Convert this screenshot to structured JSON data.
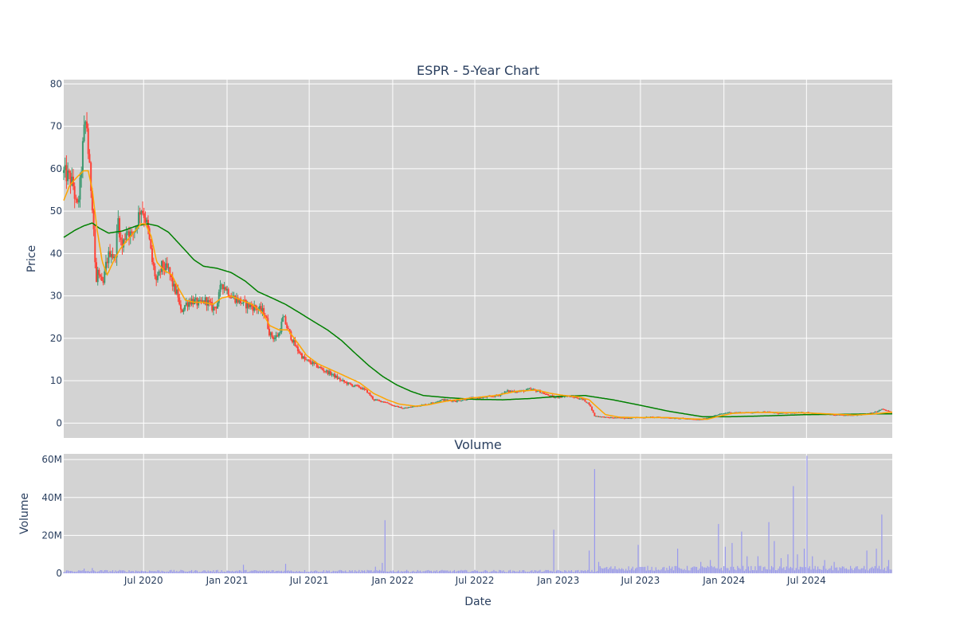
{
  "chart_data": [
    {
      "type": "candlestick",
      "title": "ESPR - 5-Year Chart",
      "ylabel": "Price",
      "ylim": [
        -3.5,
        81
      ],
      "yticks": [
        0,
        10,
        20,
        30,
        40,
        50,
        60,
        70,
        80
      ],
      "x_range": [
        "2020-01-07",
        "2025-01-06"
      ],
      "grid": true,
      "background": "#d3d3d3",
      "colors": {
        "increasing": "#3d9970",
        "decreasing": "#ff4136",
        "ma_short": "#ffa500",
        "ma_long": "#008000"
      },
      "price_anchors": [
        [
          "2020-01-07",
          59
        ],
        [
          "2020-01-18",
          58
        ],
        [
          "2020-01-28",
          56
        ],
        [
          "2020-02-05",
          50
        ],
        [
          "2020-02-12",
          56
        ],
        [
          "2020-02-20",
          68
        ],
        [
          "2020-02-26",
          72
        ],
        [
          "2020-03-02",
          62
        ],
        [
          "2020-03-06",
          57
        ],
        [
          "2020-03-10",
          52
        ],
        [
          "2020-03-14",
          44
        ],
        [
          "2020-03-18",
          32
        ],
        [
          "2020-03-22",
          36
        ],
        [
          "2020-03-26",
          34
        ],
        [
          "2020-04-02",
          32
        ],
        [
          "2020-04-10",
          38
        ],
        [
          "2020-04-20",
          41
        ],
        [
          "2020-04-28",
          38
        ],
        [
          "2020-05-06",
          48
        ],
        [
          "2020-05-14",
          41
        ],
        [
          "2020-05-25",
          46
        ],
        [
          "2020-06-05",
          44
        ],
        [
          "2020-06-15",
          47
        ],
        [
          "2020-06-25",
          51
        ],
        [
          "2020-07-03",
          49
        ],
        [
          "2020-07-10",
          46
        ],
        [
          "2020-07-20",
          38
        ],
        [
          "2020-07-30",
          33
        ],
        [
          "2020-08-10",
          37
        ],
        [
          "2020-08-25",
          36
        ],
        [
          "2020-09-05",
          32
        ],
        [
          "2020-09-15",
          30
        ],
        [
          "2020-09-20",
          26
        ],
        [
          "2020-10-01",
          28
        ],
        [
          "2020-10-15",
          29
        ],
        [
          "2020-11-01",
          28
        ],
        [
          "2020-11-15",
          29
        ],
        [
          "2020-12-01",
          27
        ],
        [
          "2020-12-10",
          28
        ],
        [
          "2020-12-20",
          33
        ],
        [
          "2020-12-28",
          32
        ],
        [
          "2021-01-10",
          30
        ],
        [
          "2021-01-25",
          29
        ],
        [
          "2021-02-10",
          28
        ],
        [
          "2021-02-25",
          27.5
        ],
        [
          "2021-03-10",
          27
        ],
        [
          "2021-03-25",
          26
        ],
        [
          "2021-04-05",
          21
        ],
        [
          "2021-04-15",
          20
        ],
        [
          "2021-04-25",
          21
        ],
        [
          "2021-05-05",
          25
        ],
        [
          "2021-05-15",
          22
        ],
        [
          "2021-06-01",
          18
        ],
        [
          "2021-06-20",
          15
        ],
        [
          "2021-07-10",
          14
        ],
        [
          "2021-08-01",
          12.5
        ],
        [
          "2021-08-20",
          11.5
        ],
        [
          "2021-09-10",
          10
        ],
        [
          "2021-10-01",
          9
        ],
        [
          "2021-10-20",
          8.5
        ],
        [
          "2021-11-05",
          7.5
        ],
        [
          "2021-11-20",
          5.5
        ],
        [
          "2021-12-15",
          5
        ],
        [
          "2022-01-05",
          4
        ],
        [
          "2022-01-25",
          3.5
        ],
        [
          "2022-02-20",
          4
        ],
        [
          "2022-03-20",
          4.5
        ],
        [
          "2022-04-20",
          5.5
        ],
        [
          "2022-05-20",
          5.2
        ],
        [
          "2022-06-20",
          5.8
        ],
        [
          "2022-07-20",
          6
        ],
        [
          "2022-08-20",
          6.5
        ],
        [
          "2022-09-10",
          7.5
        ],
        [
          "2022-10-10",
          7.5
        ],
        [
          "2022-11-01",
          8
        ],
        [
          "2022-11-20",
          7.5
        ],
        [
          "2022-12-10",
          6.5
        ],
        [
          "2022-12-25",
          6
        ],
        [
          "2023-01-15",
          6.5
        ],
        [
          "2023-02-10",
          6
        ],
        [
          "2023-02-25",
          5.5
        ],
        [
          "2023-03-10",
          4.5
        ],
        [
          "2023-03-22",
          1.7
        ],
        [
          "2023-04-20",
          1.3
        ],
        [
          "2023-05-20",
          1.2
        ],
        [
          "2023-06-20",
          1.3
        ],
        [
          "2023-07-20",
          1.4
        ],
        [
          "2023-08-20",
          1.3
        ],
        [
          "2023-09-20",
          1.2
        ],
        [
          "2023-10-20",
          0.9
        ],
        [
          "2023-11-10",
          0.8
        ],
        [
          "2023-12-01",
          1.4
        ],
        [
          "2023-12-20",
          2
        ],
        [
          "2024-01-10",
          2.5
        ],
        [
          "2024-02-01",
          2.5
        ],
        [
          "2024-03-01",
          2.5
        ],
        [
          "2024-04-01",
          2.7
        ],
        [
          "2024-05-01",
          2.3
        ],
        [
          "2024-06-01",
          2.4
        ],
        [
          "2024-07-01",
          2.5
        ],
        [
          "2024-08-01",
          2.2
        ],
        [
          "2024-09-01",
          1.9
        ],
        [
          "2024-10-01",
          1.8
        ],
        [
          "2024-11-01",
          2.1
        ],
        [
          "2024-12-01",
          2.6
        ],
        [
          "2024-12-15",
          3.3
        ],
        [
          "2025-01-06",
          2.4
        ]
      ],
      "ma_short_anchors": [
        [
          "2020-01-07",
          52.5
        ],
        [
          "2020-01-20",
          56
        ],
        [
          "2020-02-05",
          58
        ],
        [
          "2020-02-20",
          59.5
        ],
        [
          "2020-03-01",
          59.5
        ],
        [
          "2020-03-10",
          55
        ],
        [
          "2020-03-20",
          46
        ],
        [
          "2020-04-01",
          38
        ],
        [
          "2020-04-12",
          35
        ],
        [
          "2020-04-25",
          38
        ],
        [
          "2020-05-10",
          41
        ],
        [
          "2020-05-25",
          43
        ],
        [
          "2020-06-10",
          45
        ],
        [
          "2020-06-25",
          47
        ],
        [
          "2020-07-05",
          47
        ],
        [
          "2020-07-18",
          44
        ],
        [
          "2020-07-30",
          38
        ],
        [
          "2020-08-15",
          36
        ],
        [
          "2020-09-01",
          35
        ],
        [
          "2020-09-15",
          32
        ],
        [
          "2020-10-01",
          29
        ],
        [
          "2020-10-20",
          28.5
        ],
        [
          "2020-11-10",
          28.5
        ],
        [
          "2020-12-01",
          28
        ],
        [
          "2020-12-20",
          29.5
        ],
        [
          "2021-01-10",
          30
        ],
        [
          "2021-02-01",
          29
        ],
        [
          "2021-02-25",
          28
        ],
        [
          "2021-03-20",
          26
        ],
        [
          "2021-04-05",
          23
        ],
        [
          "2021-04-25",
          22
        ],
        [
          "2021-05-15",
          22
        ],
        [
          "2021-06-05",
          19
        ],
        [
          "2021-06-25",
          16
        ],
        [
          "2021-07-20",
          14
        ],
        [
          "2021-08-20",
          12.5
        ],
        [
          "2021-09-20",
          11
        ],
        [
          "2021-10-20",
          9.5
        ],
        [
          "2021-11-20",
          7
        ],
        [
          "2021-12-20",
          5.5
        ],
        [
          "2022-01-15",
          4.5
        ],
        [
          "2022-02-20",
          4
        ],
        [
          "2022-03-20",
          4.3
        ],
        [
          "2022-04-20",
          5
        ],
        [
          "2022-05-20",
          5.5
        ],
        [
          "2022-07-01",
          6
        ],
        [
          "2022-08-15",
          6.5
        ],
        [
          "2022-10-01",
          7.5
        ],
        [
          "2022-11-15",
          7.8
        ],
        [
          "2022-12-15",
          7
        ],
        [
          "2023-01-15",
          6.5
        ],
        [
          "2023-02-15",
          6.2
        ],
        [
          "2023-03-10",
          5.5
        ],
        [
          "2023-03-25",
          4
        ],
        [
          "2023-04-15",
          2
        ],
        [
          "2023-05-15",
          1.4
        ],
        [
          "2023-07-01",
          1.3
        ],
        [
          "2023-09-01",
          1.3
        ],
        [
          "2023-10-20",
          1
        ],
        [
          "2023-11-25",
          0.9
        ],
        [
          "2023-12-20",
          1.6
        ],
        [
          "2024-01-20",
          2.3
        ],
        [
          "2024-03-01",
          2.5
        ],
        [
          "2024-05-01",
          2.5
        ],
        [
          "2024-07-01",
          2.4
        ],
        [
          "2024-09-01",
          2.1
        ],
        [
          "2024-10-15",
          1.9
        ],
        [
          "2024-11-20",
          2.1
        ],
        [
          "2025-01-06",
          2.6
        ]
      ],
      "ma_long_anchors": [
        [
          "2020-01-07",
          43.8
        ],
        [
          "2020-02-01",
          45.5
        ],
        [
          "2020-02-20",
          46.5
        ],
        [
          "2020-03-10",
          47.2
        ],
        [
          "2020-03-25",
          46
        ],
        [
          "2020-04-15",
          44.8
        ],
        [
          "2020-05-15",
          45.3
        ],
        [
          "2020-06-15",
          46.5
        ],
        [
          "2020-07-10",
          47
        ],
        [
          "2020-08-01",
          46.5
        ],
        [
          "2020-08-25",
          45
        ],
        [
          "2020-09-20",
          42
        ],
        [
          "2020-10-20",
          38.5
        ],
        [
          "2020-11-10",
          37
        ],
        [
          "2020-12-10",
          36.5
        ],
        [
          "2021-01-10",
          35.5
        ],
        [
          "2021-02-10",
          33.5
        ],
        [
          "2021-03-10",
          31
        ],
        [
          "2021-04-10",
          29.5
        ],
        [
          "2021-05-10",
          28
        ],
        [
          "2021-06-10",
          26
        ],
        [
          "2021-07-10",
          24
        ],
        [
          "2021-08-10",
          22
        ],
        [
          "2021-09-10",
          19.5
        ],
        [
          "2021-10-10",
          16.5
        ],
        [
          "2021-11-10",
          13.5
        ],
        [
          "2021-12-10",
          11
        ],
        [
          "2022-01-10",
          9
        ],
        [
          "2022-02-10",
          7.5
        ],
        [
          "2022-03-10",
          6.5
        ],
        [
          "2022-05-01",
          6
        ],
        [
          "2022-07-01",
          5.6
        ],
        [
          "2022-09-01",
          5.5
        ],
        [
          "2022-11-01",
          5.8
        ],
        [
          "2023-01-01",
          6.3
        ],
        [
          "2023-03-01",
          6.5
        ],
        [
          "2023-05-01",
          5.5
        ],
        [
          "2023-07-01",
          4.2
        ],
        [
          "2023-09-01",
          2.8
        ],
        [
          "2023-11-15",
          1.5
        ],
        [
          "2024-01-15",
          1.5
        ],
        [
          "2024-04-01",
          1.7
        ],
        [
          "2024-07-01",
          2
        ],
        [
          "2024-10-01",
          2.1
        ],
        [
          "2025-01-06",
          2.2
        ]
      ]
    },
    {
      "type": "bar",
      "title": "Volume",
      "ylabel": "Volume",
      "xlabel": "Date",
      "ylim": [
        0,
        63000000
      ],
      "yticks": [
        0,
        20000000,
        40000000,
        60000000
      ],
      "ytick_labels": [
        "0",
        "20M",
        "40M",
        "60M"
      ],
      "xticks": [
        "2020-07-01",
        "2021-01-01",
        "2021-07-01",
        "2022-01-01",
        "2022-07-01",
        "2023-01-01",
        "2023-07-01",
        "2024-01-01",
        "2024-07-01"
      ],
      "xtick_labels": [
        "Jul 2020",
        "Jan 2021",
        "Jul 2021",
        "Jan 2022",
        "Jul 2022",
        "Jan 2023",
        "Jul 2023",
        "Jan 2024",
        "Jul 2024"
      ],
      "color": "#9999ee",
      "baseline_volume": 1200000,
      "spikes": [
        [
          "2020-02-20",
          2500000
        ],
        [
          "2020-03-10",
          2800000
        ],
        [
          "2021-02-05",
          4500000
        ],
        [
          "2021-05-10",
          5000000
        ],
        [
          "2021-11-25",
          3500000
        ],
        [
          "2021-12-10",
          5500000
        ],
        [
          "2021-12-14",
          28000000
        ],
        [
          "2022-12-22",
          23000000
        ],
        [
          "2023-03-10",
          12000000
        ],
        [
          "2023-03-22",
          55000000
        ],
        [
          "2023-04-01",
          6000000
        ],
        [
          "2023-06-25",
          15000000
        ],
        [
          "2023-09-20",
          13000000
        ],
        [
          "2023-11-10",
          6000000
        ],
        [
          "2023-12-01",
          7000000
        ],
        [
          "2023-12-20",
          26000000
        ],
        [
          "2024-01-05",
          14000000
        ],
        [
          "2024-01-20",
          16000000
        ],
        [
          "2024-02-10",
          22000000
        ],
        [
          "2024-02-20",
          9000000
        ],
        [
          "2024-03-15",
          9000000
        ],
        [
          "2024-04-10",
          27000000
        ],
        [
          "2024-04-20",
          17000000
        ],
        [
          "2024-05-05",
          8000000
        ],
        [
          "2024-05-20",
          10000000
        ],
        [
          "2024-06-01",
          46000000
        ],
        [
          "2024-06-10",
          10000000
        ],
        [
          "2024-06-25",
          13000000
        ],
        [
          "2024-07-01",
          62000000
        ],
        [
          "2024-07-15",
          9000000
        ],
        [
          "2024-08-10",
          7000000
        ],
        [
          "2024-09-01",
          6000000
        ],
        [
          "2024-11-10",
          12000000
        ],
        [
          "2024-12-01",
          13000000
        ],
        [
          "2024-12-15",
          31000000
        ],
        [
          "2024-12-28",
          7000000
        ]
      ]
    }
  ]
}
